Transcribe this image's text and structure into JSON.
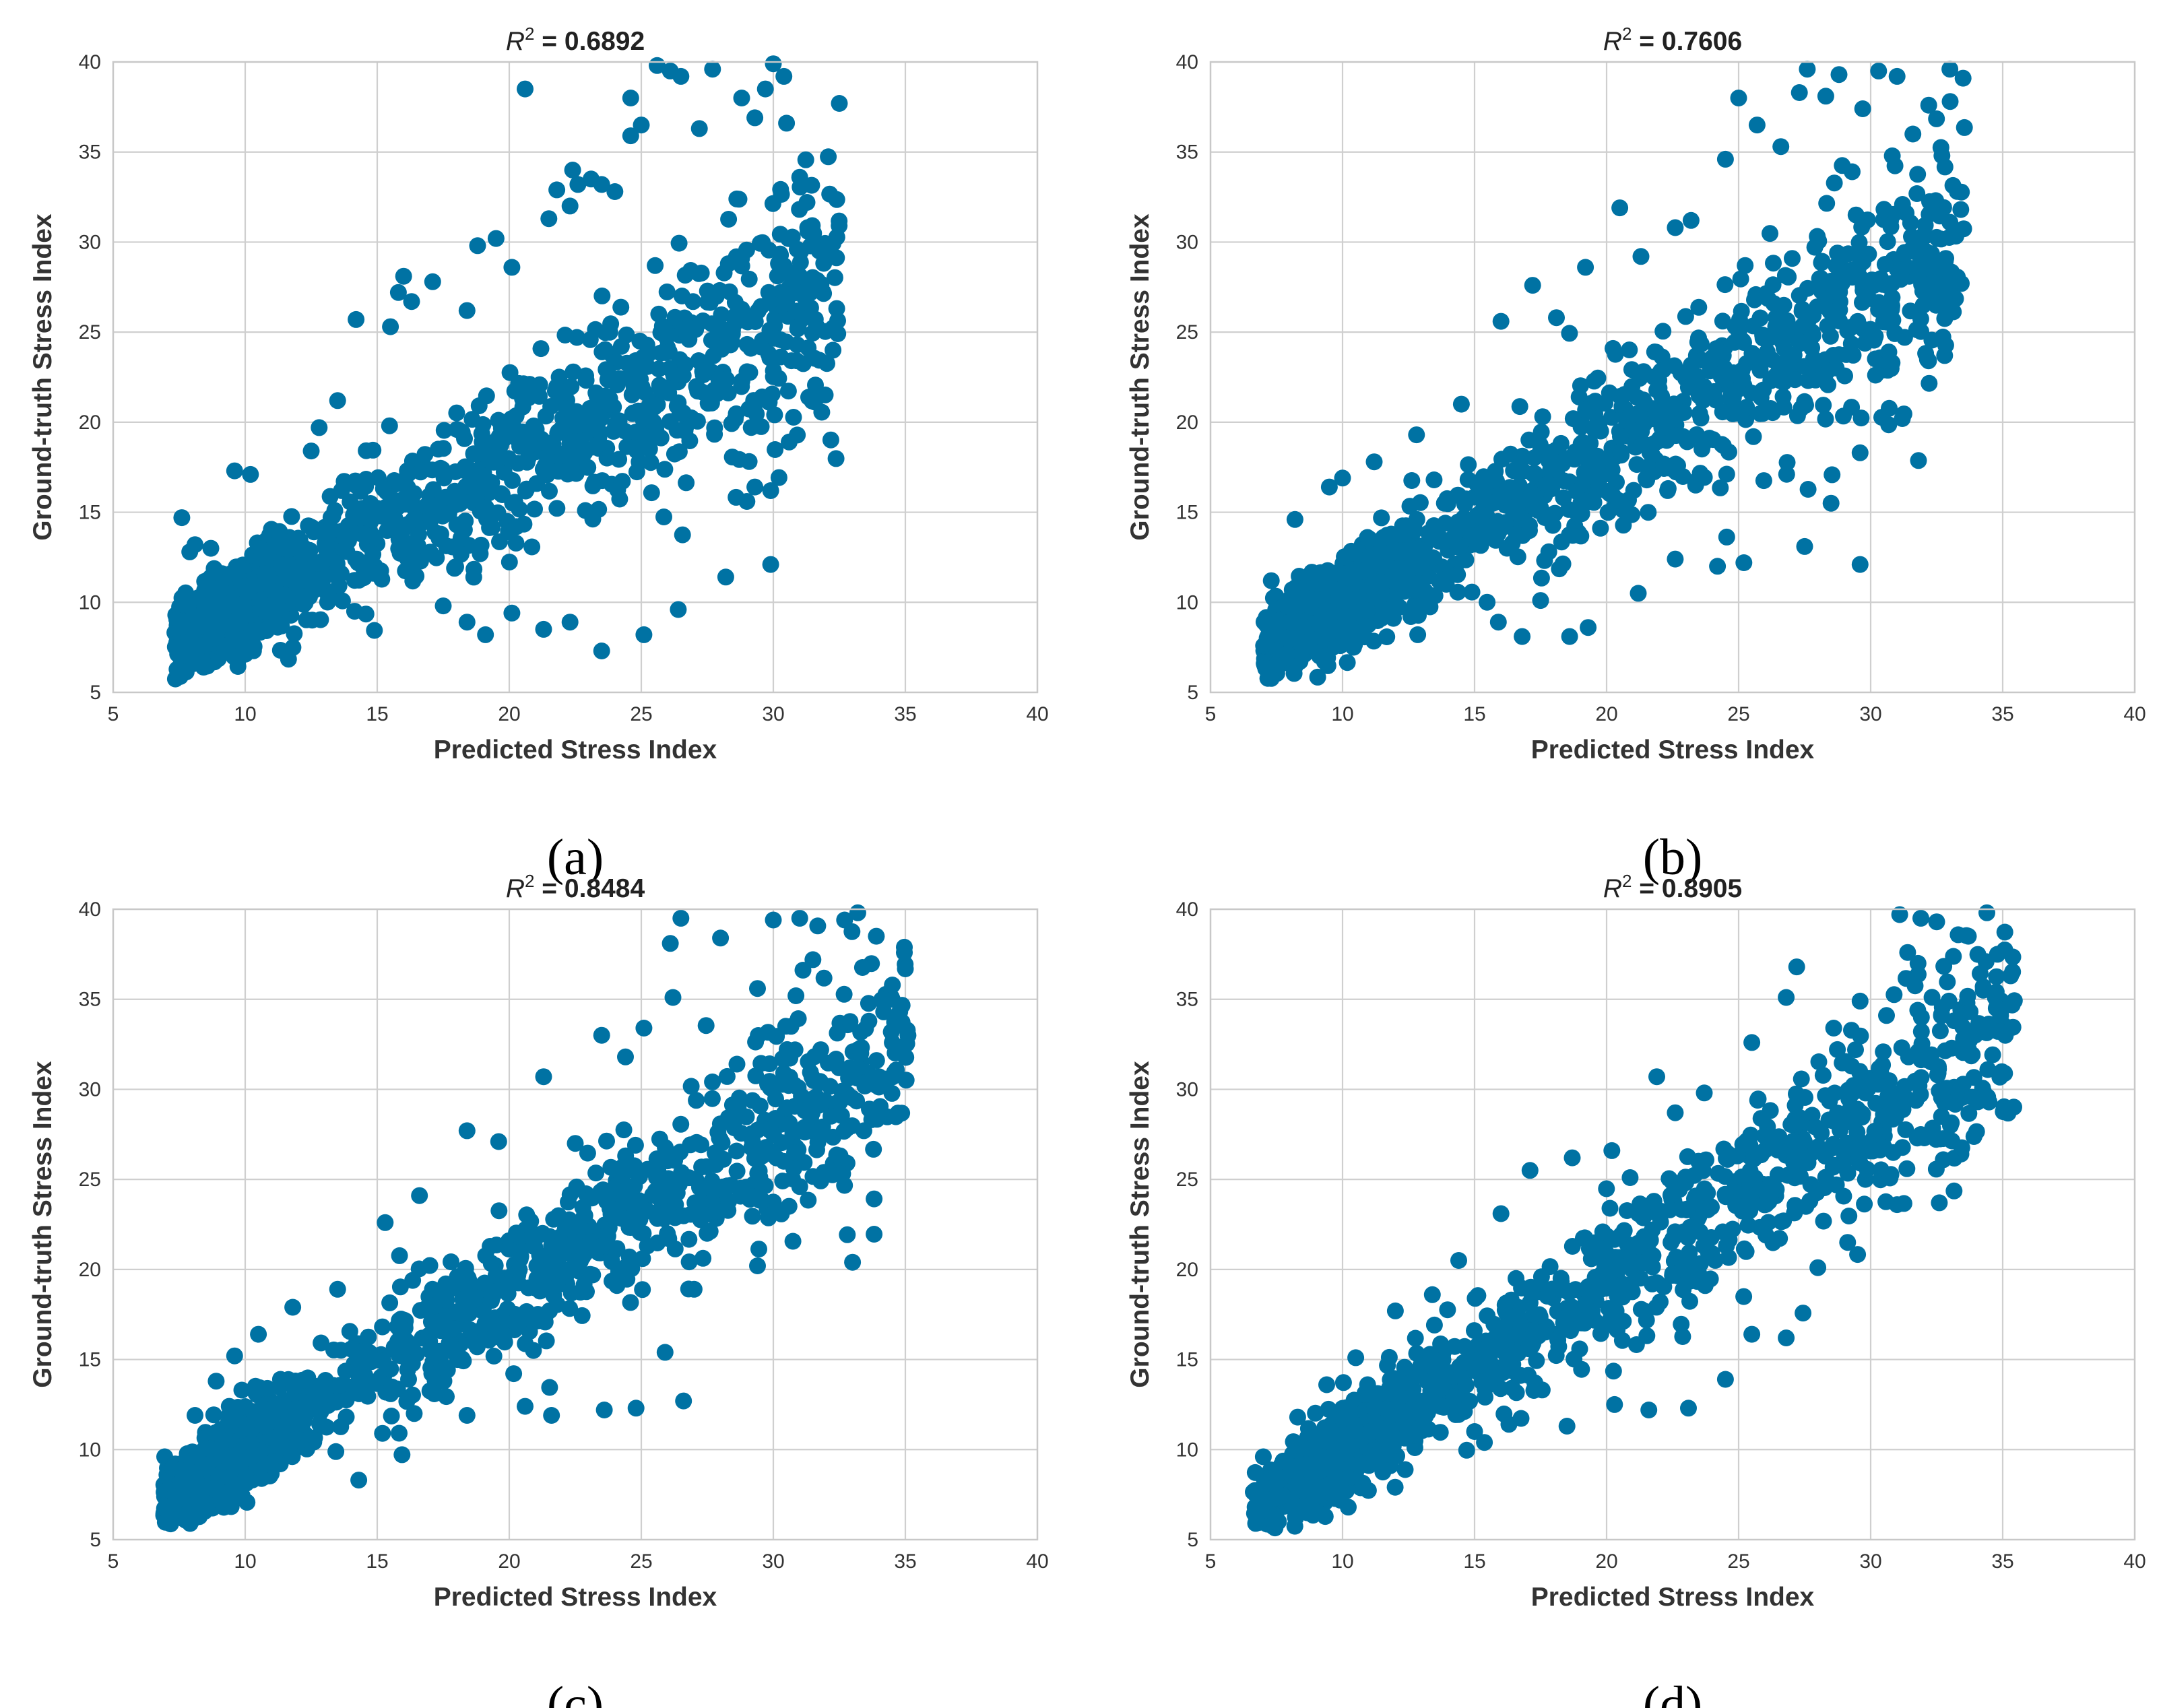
{
  "figure": {
    "marker_color": "#0072a3",
    "chart_data": [
      {
        "type": "scatter",
        "panel": "(a)",
        "title_prefix": "R",
        "title_superscript": "2",
        "title_value": " = 0.6892",
        "r2": 0.6892,
        "xlabel": "Predicted Stress Index",
        "ylabel": "Ground-truth Stress Index",
        "xlim": [
          5,
          40
        ],
        "ylim": [
          5,
          40
        ],
        "xticks": [
          5,
          10,
          15,
          20,
          25,
          30,
          35,
          40
        ],
        "yticks": [
          5,
          10,
          15,
          20,
          25,
          30,
          35,
          40
        ],
        "x_range": [
          7.3,
          32.5
        ],
        "n_points": 1500,
        "seed": 11,
        "points": [
          [
            7.6,
            14.7
          ],
          [
            7.9,
            12.8
          ],
          [
            8.1,
            13.2
          ],
          [
            8.7,
            13.0
          ],
          [
            9.6,
            17.3
          ],
          [
            10.2,
            17.1
          ],
          [
            12.5,
            18.4
          ],
          [
            12.8,
            19.7
          ],
          [
            13.5,
            21.2
          ],
          [
            14.2,
            25.7
          ],
          [
            15.5,
            25.3
          ],
          [
            15.8,
            27.2
          ],
          [
            16.0,
            28.1
          ],
          [
            16.3,
            26.7
          ],
          [
            17.1,
            27.8
          ],
          [
            18.4,
            26.2
          ],
          [
            18.8,
            29.8
          ],
          [
            19.5,
            30.2
          ],
          [
            20.1,
            28.6
          ],
          [
            20.6,
            38.5
          ],
          [
            21.5,
            31.3
          ],
          [
            21.8,
            32.9
          ],
          [
            22.3,
            32.0
          ],
          [
            22.4,
            34.0
          ],
          [
            22.6,
            33.2
          ],
          [
            23.1,
            33.5
          ],
          [
            23.5,
            33.2
          ],
          [
            24.0,
            32.8
          ],
          [
            24.6,
            35.9
          ],
          [
            25.0,
            36.5
          ],
          [
            24.6,
            38.0
          ],
          [
            25.6,
            39.8
          ],
          [
            26.1,
            39.5
          ],
          [
            26.5,
            39.2
          ],
          [
            27.2,
            36.3
          ],
          [
            27.7,
            39.6
          ],
          [
            28.8,
            38.0
          ],
          [
            29.3,
            36.9
          ],
          [
            29.7,
            38.5
          ],
          [
            30.0,
            39.9
          ],
          [
            30.4,
            39.2
          ],
          [
            30.5,
            36.6
          ],
          [
            32.5,
            37.7
          ],
          [
            31.0,
            33.6
          ],
          [
            31.3,
            30.8
          ],
          [
            31.2,
            26.9
          ],
          [
            30.9,
            24.3
          ],
          [
            30.6,
            18.9
          ],
          [
            29.9,
            16.2
          ],
          [
            29.3,
            16.4
          ],
          [
            29.0,
            15.6
          ],
          [
            29.9,
            12.1
          ],
          [
            28.2,
            11.4
          ],
          [
            26.4,
            9.6
          ],
          [
            25.1,
            8.2
          ],
          [
            23.5,
            7.3
          ],
          [
            22.3,
            8.9
          ],
          [
            21.3,
            8.5
          ],
          [
            20.1,
            9.4
          ],
          [
            19.1,
            8.2
          ],
          [
            18.4,
            8.9
          ],
          [
            17.5,
            9.8
          ]
        ]
      },
      {
        "type": "scatter",
        "panel": "(b)",
        "title_prefix": "R",
        "title_superscript": "2",
        "title_value": " = 0.7606",
        "r2": 0.7606,
        "xlabel": "Predicted Stress Index",
        "ylabel": "Ground-truth Stress Index",
        "xlim": [
          5,
          40
        ],
        "ylim": [
          5,
          40
        ],
        "xticks": [
          5,
          10,
          15,
          20,
          25,
          30,
          35,
          40
        ],
        "yticks": [
          5,
          10,
          15,
          20,
          25,
          30,
          35,
          40
        ],
        "x_range": [
          7.0,
          33.6
        ],
        "n_points": 1500,
        "seed": 23,
        "points": [
          [
            7.3,
            11.2
          ],
          [
            8.2,
            14.6
          ],
          [
            9.5,
            16.4
          ],
          [
            10.0,
            16.9
          ],
          [
            11.2,
            17.8
          ],
          [
            12.8,
            19.3
          ],
          [
            14.5,
            21.0
          ],
          [
            16.0,
            25.6
          ],
          [
            17.2,
            27.6
          ],
          [
            18.1,
            25.8
          ],
          [
            19.2,
            28.6
          ],
          [
            20.5,
            31.9
          ],
          [
            21.3,
            29.2
          ],
          [
            22.6,
            30.8
          ],
          [
            23.2,
            31.2
          ],
          [
            24.5,
            34.6
          ],
          [
            25.0,
            38.0
          ],
          [
            25.7,
            36.5
          ],
          [
            26.6,
            35.3
          ],
          [
            27.3,
            38.3
          ],
          [
            27.6,
            39.6
          ],
          [
            28.3,
            38.1
          ],
          [
            28.8,
            39.3
          ],
          [
            29.7,
            37.4
          ],
          [
            30.3,
            39.5
          ],
          [
            31.0,
            39.2
          ],
          [
            31.6,
            36.0
          ],
          [
            32.2,
            37.6
          ],
          [
            33.0,
            39.6
          ],
          [
            33.5,
            39.1
          ],
          [
            32.7,
            34.8
          ],
          [
            33.0,
            31.1
          ],
          [
            32.9,
            28.2
          ],
          [
            32.8,
            23.7
          ],
          [
            31.2,
            20.2
          ],
          [
            29.6,
            18.3
          ],
          [
            28.5,
            15.5
          ],
          [
            29.6,
            12.1
          ],
          [
            27.5,
            13.1
          ],
          [
            25.2,
            12.2
          ],
          [
            24.2,
            12.0
          ],
          [
            22.6,
            12.4
          ],
          [
            21.2,
            10.5
          ],
          [
            19.3,
            8.6
          ],
          [
            18.6,
            8.1
          ],
          [
            17.5,
            10.1
          ],
          [
            16.8,
            8.1
          ],
          [
            15.9,
            8.9
          ]
        ]
      },
      {
        "type": "scatter",
        "panel": "(c)",
        "title_prefix": "R",
        "title_superscript": "2",
        "title_value": " = 0.8484",
        "r2": 0.8484,
        "xlabel": "Predicted Stress Index",
        "ylabel": "Ground-truth Stress Index",
        "xlim": [
          5,
          40
        ],
        "ylim": [
          5,
          40
        ],
        "xticks": [
          5,
          10,
          15,
          20,
          25,
          30,
          35,
          40
        ],
        "yticks": [
          5,
          10,
          15,
          20,
          25,
          30,
          35,
          40
        ],
        "x_range": [
          6.9,
          35.1
        ],
        "n_points": 1500,
        "seed": 37,
        "points": [
          [
            7.2,
            9.0
          ],
          [
            8.1,
            11.9
          ],
          [
            8.9,
            13.8
          ],
          [
            9.6,
            15.2
          ],
          [
            10.5,
            16.4
          ],
          [
            11.8,
            17.9
          ],
          [
            13.5,
            18.9
          ],
          [
            15.3,
            22.6
          ],
          [
            16.6,
            24.1
          ],
          [
            18.4,
            27.7
          ],
          [
            19.6,
            27.1
          ],
          [
            21.3,
            30.7
          ],
          [
            22.5,
            27.0
          ],
          [
            23.5,
            33.0
          ],
          [
            24.4,
            31.8
          ],
          [
            25.1,
            33.4
          ],
          [
            26.2,
            35.1
          ],
          [
            26.5,
            39.5
          ],
          [
            26.1,
            38.1
          ],
          [
            28.0,
            38.4
          ],
          [
            29.4,
            35.6
          ],
          [
            30.0,
            39.4
          ],
          [
            31.0,
            39.5
          ],
          [
            31.5,
            37.2
          ],
          [
            32.7,
            39.4
          ],
          [
            33.2,
            39.8
          ],
          [
            33.9,
            38.5
          ],
          [
            34.5,
            35.0
          ],
          [
            35.1,
            33.0
          ],
          [
            34.0,
            30.7
          ],
          [
            33.0,
            20.4
          ],
          [
            31.0,
            24.6
          ],
          [
            29.4,
            20.2
          ],
          [
            27.0,
            18.9
          ],
          [
            26.6,
            12.7
          ],
          [
            25.9,
            15.4
          ],
          [
            24.8,
            12.3
          ],
          [
            23.6,
            12.2
          ],
          [
            21.6,
            11.9
          ],
          [
            20.6,
            12.4
          ],
          [
            18.4,
            11.9
          ],
          [
            16.4,
            12.0
          ],
          [
            15.2,
            10.9
          ]
        ]
      },
      {
        "type": "scatter",
        "panel": "(d)",
        "title_prefix": "R",
        "title_superscript": "2",
        "title_value": " = 0.8905",
        "r2": 0.8905,
        "xlabel": "Predicted Stress Index",
        "ylabel": "Ground-truth Stress Index",
        "xlim": [
          5,
          40
        ],
        "ylim": [
          5,
          40
        ],
        "xticks": [
          5,
          10,
          15,
          20,
          25,
          30,
          35,
          40
        ],
        "yticks": [
          5,
          10,
          15,
          20,
          25,
          30,
          35,
          40
        ],
        "x_range": [
          6.6,
          35.5
        ],
        "n_points": 1500,
        "seed": 53,
        "points": [
          [
            7.0,
            9.6
          ],
          [
            8.3,
            11.8
          ],
          [
            9.4,
            13.6
          ],
          [
            10.5,
            15.1
          ],
          [
            12.0,
            17.7
          ],
          [
            13.4,
            18.6
          ],
          [
            14.4,
            20.5
          ],
          [
            16.0,
            23.1
          ],
          [
            17.1,
            25.5
          ],
          [
            18.7,
            26.2
          ],
          [
            20.2,
            26.6
          ],
          [
            21.9,
            30.7
          ],
          [
            22.6,
            28.7
          ],
          [
            23.7,
            29.8
          ],
          [
            25.5,
            32.6
          ],
          [
            26.8,
            35.1
          ],
          [
            27.2,
            36.8
          ],
          [
            28.6,
            33.4
          ],
          [
            29.6,
            34.9
          ],
          [
            30.6,
            34.1
          ],
          [
            31.4,
            37.6
          ],
          [
            31.1,
            39.7
          ],
          [
            31.9,
            39.5
          ],
          [
            32.5,
            39.3
          ],
          [
            33.7,
            38.5
          ],
          [
            34.4,
            39.8
          ],
          [
            34.8,
            37.5
          ],
          [
            35.3,
            36.3
          ],
          [
            35.1,
            33.0
          ],
          [
            34.2,
            29.6
          ],
          [
            32.6,
            23.7
          ],
          [
            31.0,
            23.6
          ],
          [
            29.8,
            25.0
          ],
          [
            28.0,
            20.1
          ],
          [
            26.8,
            16.2
          ],
          [
            25.5,
            16.4
          ],
          [
            24.5,
            13.9
          ],
          [
            23.1,
            12.3
          ],
          [
            21.6,
            12.2
          ],
          [
            20.3,
            12.5
          ],
          [
            18.5,
            11.3
          ],
          [
            16.3,
            11.4
          ],
          [
            15.0,
            11.0
          ]
        ]
      }
    ]
  }
}
